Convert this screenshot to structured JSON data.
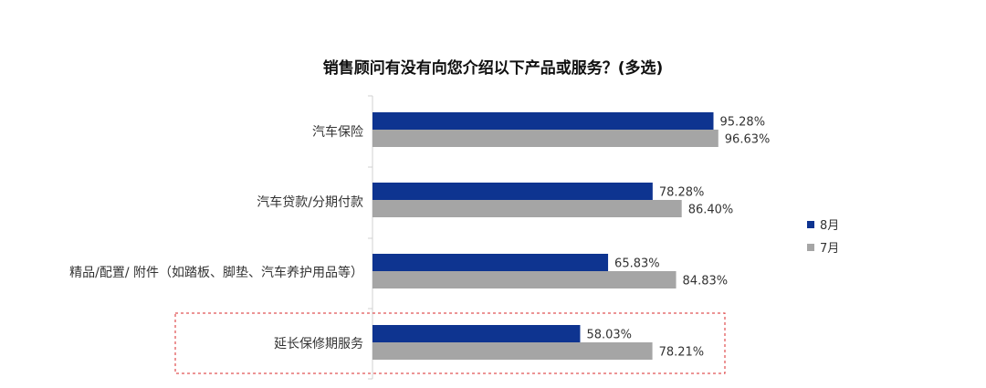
{
  "chart_data": {
    "type": "bar",
    "orientation": "horizontal",
    "title": "销售顾问有没有向您介绍以下产品或服务？(多选)",
    "categories": [
      "汽车保险",
      "汽车贷款/分期付款",
      "精品/配置/ 附件（如踏板、脚垫、汽车养护用品等）",
      "延长保修期服务"
    ],
    "series": [
      {
        "name": "8月",
        "values": [
          95.28,
          78.28,
          65.83,
          58.03
        ],
        "color": "#0e3490"
      },
      {
        "name": "7月",
        "values": [
          96.63,
          86.4,
          84.83,
          78.21
        ],
        "color": "#a5a5a5"
      }
    ],
    "value_labels": [
      [
        "95.28%",
        "78.28%",
        "65.83%",
        "58.03%"
      ],
      [
        "96.63%",
        "86.40%",
        "84.83%",
        "78.21%"
      ]
    ],
    "unit": "%",
    "xlim": [
      0,
      100
    ],
    "grid": false,
    "legend_position": "right",
    "highlighted_category": "延长保修期服务",
    "highlight_color": "#d9292b"
  }
}
